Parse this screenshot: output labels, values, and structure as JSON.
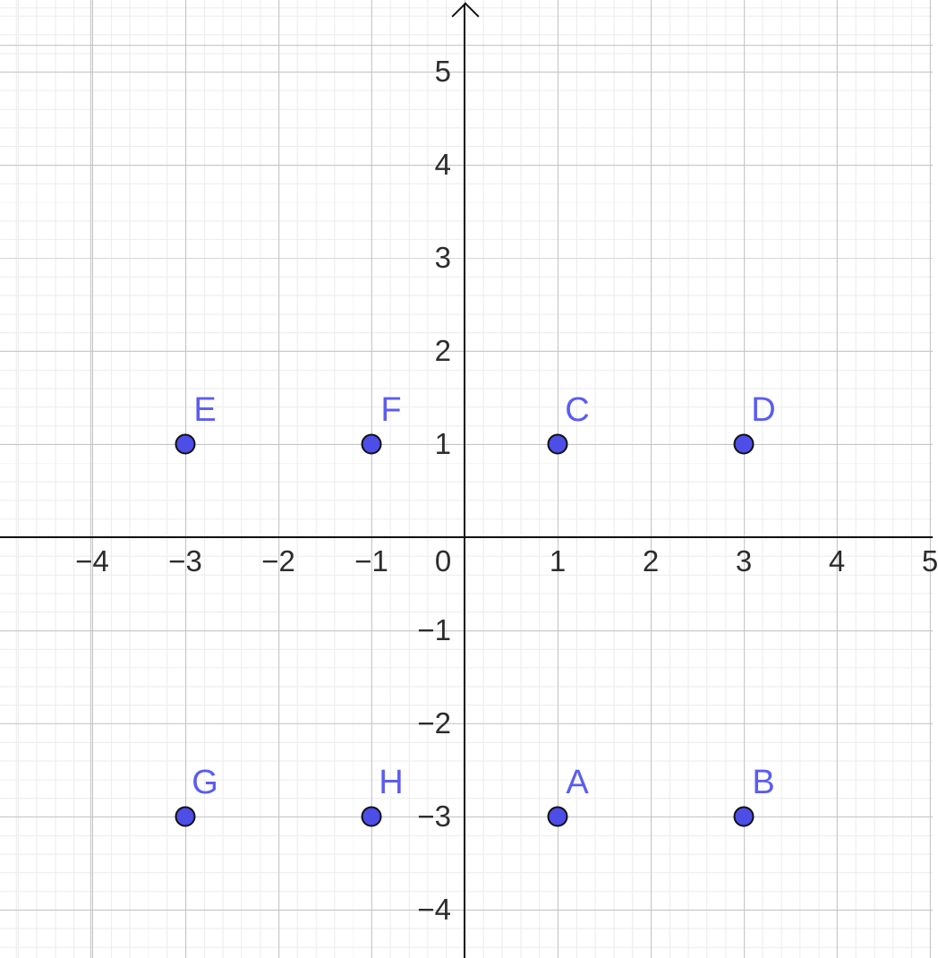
{
  "chart_data": {
    "type": "scatter",
    "description": "Coordinate grid (GeoGebra-style graphics view) with eight labeled points",
    "points": [
      {
        "label": "A",
        "x": 1,
        "y": -3
      },
      {
        "label": "B",
        "x": 3,
        "y": -3
      },
      {
        "label": "C",
        "x": 1,
        "y": 1
      },
      {
        "label": "D",
        "x": 3,
        "y": 1
      },
      {
        "label": "E",
        "x": -3,
        "y": 1
      },
      {
        "label": "F",
        "x": -1,
        "y": 1
      },
      {
        "label": "G",
        "x": -3,
        "y": -3
      },
      {
        "label": "H",
        "x": -1,
        "y": -3
      }
    ],
    "x_ticks": [
      {
        "value": -4,
        "label": "−4"
      },
      {
        "value": -3,
        "label": "−3"
      },
      {
        "value": -2,
        "label": "−2"
      },
      {
        "value": -1,
        "label": "−1"
      },
      {
        "value": 0,
        "label": "0"
      },
      {
        "value": 1,
        "label": "1"
      },
      {
        "value": 2,
        "label": "2"
      },
      {
        "value": 3,
        "label": "3"
      },
      {
        "value": 4,
        "label": "4"
      },
      {
        "value": 5,
        "label": "5"
      }
    ],
    "y_ticks": [
      {
        "value": 5,
        "label": "5"
      },
      {
        "value": 4,
        "label": "4"
      },
      {
        "value": 3,
        "label": "3"
      },
      {
        "value": 2,
        "label": "2"
      },
      {
        "value": 1,
        "label": "1"
      },
      {
        "value": -1,
        "label": "−1"
      },
      {
        "value": -2,
        "label": "−2"
      },
      {
        "value": -3,
        "label": "−3"
      },
      {
        "value": -4,
        "label": "−4"
      }
    ],
    "xlim": [
      -5.0,
      5.05
    ],
    "ylim": [
      -4.55,
      5.75
    ],
    "grid": "major and minor gridlines on",
    "minor_per_major": 5,
    "legend": "none",
    "title": "",
    "xlabel": "",
    "ylabel": "",
    "colors": {
      "background": "#ffffff",
      "major_grid": "#c3c3c3",
      "minor_grid": "#ececec",
      "axis": "#111111",
      "tick_text": "#2d2d2d",
      "point_fill": "#4d4de8",
      "point_border": "#111111",
      "point_label": "#5a5cf2"
    }
  }
}
